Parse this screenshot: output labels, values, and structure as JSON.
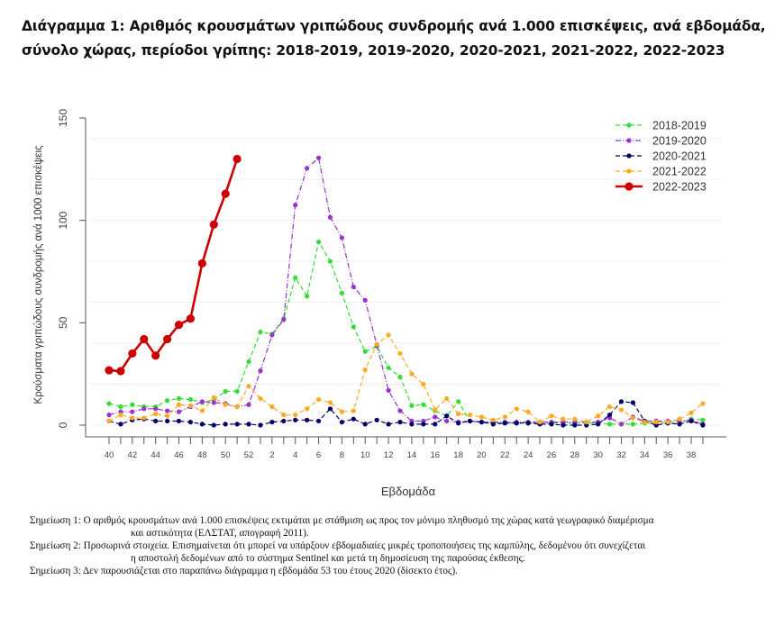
{
  "title": {
    "line1": "Διάγραμμα 1: Αριθμός κρουσμάτων γριπώδους συνδρομής ανά 1.000 επισκέψεις, ανά εβδομάδα,",
    "line2": "σύνολο χώρας, περίοδοι γρίπης: 2018-2019, 2019-2020, 2020-2021, 2021-2022, 2022-2023"
  },
  "chart_data": {
    "type": "line",
    "title": "",
    "xlabel": "Εβδομάδα",
    "ylabel": "Κρούσματα γριπώδους συνδρομής ανά 1000 επισκέψεις",
    "ylim": [
      0,
      150
    ],
    "yticks": [
      0,
      50,
      100,
      150
    ],
    "ygrid": [
      0,
      20,
      40,
      60,
      80,
      100,
      120,
      140
    ],
    "grid": true,
    "legend_position": "top-right",
    "x": [
      40,
      41,
      42,
      43,
      44,
      45,
      46,
      47,
      48,
      49,
      50,
      51,
      52,
      1,
      2,
      3,
      4,
      5,
      6,
      7,
      8,
      9,
      10,
      11,
      12,
      13,
      14,
      15,
      16,
      17,
      18,
      19,
      20,
      21,
      22,
      23,
      24,
      25,
      26,
      27,
      28,
      29,
      30,
      31,
      32,
      33,
      34,
      35,
      36,
      37,
      38,
      39
    ],
    "xtick_labels": [
      "40",
      "42",
      "44",
      "46",
      "48",
      "50",
      "52",
      "2",
      "4",
      "6",
      "8",
      "10",
      "12",
      "14",
      "16",
      "18",
      "20",
      "22",
      "24",
      "26",
      "28",
      "30",
      "32",
      "34",
      "36",
      "38"
    ],
    "series": [
      {
        "name": "2018-2019",
        "color": "#33dd33",
        "style": "dashed",
        "values": [
          10.5,
          9,
          10,
          9,
          9,
          12,
          13,
          12.5,
          11,
          12.5,
          16.5,
          16.5,
          31,
          45.5,
          44.5,
          52,
          72,
          63,
          89.5,
          80,
          64.5,
          48,
          36,
          38.5,
          28,
          23.5,
          9.5,
          10,
          7,
          4.5,
          11.5,
          2,
          1.5,
          1,
          1,
          1,
          1,
          1,
          1,
          1,
          1,
          1,
          1,
          0.5,
          0.5,
          0.5,
          1,
          1,
          1,
          1,
          3,
          2.5
        ]
      },
      {
        "name": "2019-2020",
        "color": "#9933cc",
        "style": "dashdot",
        "values": [
          5,
          6.5,
          6.5,
          8,
          8,
          7,
          6.5,
          9,
          11.5,
          11,
          10.5,
          9,
          10,
          26.5,
          44,
          51.5,
          107.5,
          125.5,
          130.5,
          101.5,
          91.5,
          67.5,
          61,
          39,
          17,
          7,
          2,
          2,
          4,
          2,
          1.5,
          2,
          1.5,
          1.5,
          1.5,
          1.5,
          1.5,
          1.5,
          1.5,
          1.5,
          1.5,
          1.5,
          1.5,
          3.5,
          0.5,
          4,
          2,
          2,
          2,
          2,
          2.5,
          0.5
        ]
      },
      {
        "name": "2020-2021",
        "color": "#000066",
        "style": "dashed",
        "values": [
          2,
          0.5,
          2.5,
          3,
          2,
          2,
          2,
          1.5,
          0.5,
          0,
          0.5,
          0.5,
          0.5,
          0,
          1.5,
          2,
          2.5,
          2.5,
          2,
          8,
          1.5,
          3,
          0.5,
          2.5,
          0.5,
          1.5,
          0.5,
          0.5,
          0.5,
          4.5,
          1,
          2,
          1.5,
          0.5,
          1,
          1,
          1,
          0.5,
          0.5,
          0,
          0,
          0,
          0.5,
          5,
          11.5,
          11,
          2,
          0,
          1,
          0.5,
          2,
          0
        ]
      },
      {
        "name": "2021-2022",
        "color": "#ffaa22",
        "style": "dashed",
        "values": [
          2,
          5,
          3.5,
          3.5,
          5.5,
          4.5,
          10,
          9.5,
          7,
          13.5,
          10,
          9,
          19,
          13,
          9,
          5,
          5,
          8,
          12.5,
          11,
          6.5,
          7,
          27,
          39.5,
          44,
          35,
          25,
          20,
          7.5,
          13,
          5.5,
          5,
          4,
          2.5,
          4,
          8,
          6.5,
          1.5,
          4.5,
          3,
          3,
          1.5,
          4.5,
          9,
          7.5,
          3.5,
          1.5,
          1.5,
          1.5,
          3,
          6,
          10.5
        ]
      },
      {
        "name": "2022-2023",
        "color": "#cc0000",
        "style": "solid",
        "values": [
          26.8,
          26.4,
          35,
          42,
          34,
          42,
          49,
          52,
          79,
          98,
          113,
          130
        ]
      }
    ]
  },
  "notes": [
    {
      "line1": "Σημείωση 1: Ο αριθμός κρουσμάτων ανά 1.000 επισκέψεις εκτιμάται με στάθμιση ως προς τον μόνιμο πληθυσμό της χώρας κατά γεωγραφικό διαμέρισμα",
      "line2": "και αστικότητα (ΕΛΣΤΑΤ, απογραφή 2011)."
    },
    {
      "line1": "Σημείωση 2: Προσωρινά στοιχεία. Επισημαίνεται ότι μπορεί να υπάρξουν εβδομαδιαίες μικρές τροποποιήσεις της καμπύλης, δεδομένου ότι συνεχίζεται",
      "line2": "η αποστολή δεδομένων από το σύστημα Sentinel και μετά τη δημοσίευση της παρούσας έκθεσης."
    },
    {
      "line1": "Σημείωση 3: Δεν παρουσιάζεται στο παραπάνω διάγραμμα η εβδομάδα 53 του έτους 2020 (δίσεκτο έτος).",
      "line2": ""
    }
  ]
}
